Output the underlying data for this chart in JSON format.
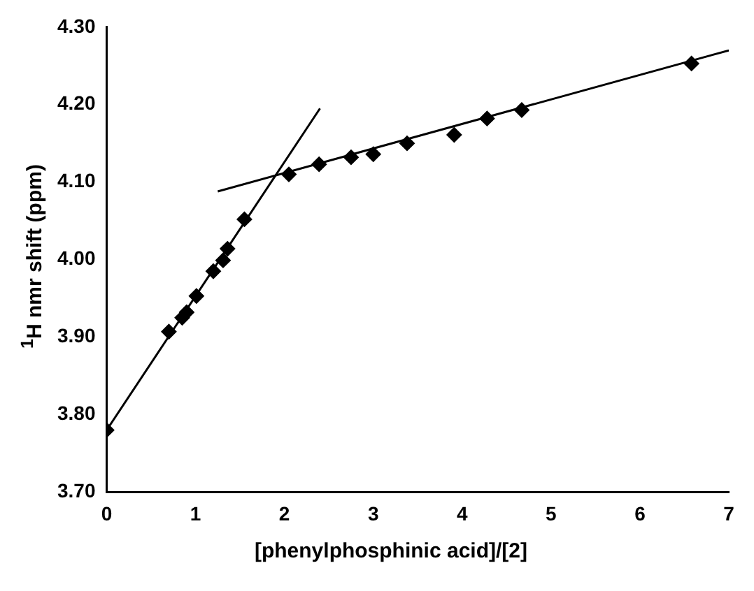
{
  "chart_data": {
    "type": "scatter",
    "xlabel": "[phenylphosphinic acid]/[2]",
    "ylabel": "$^{1}$H nmr shift (ppm)",
    "marker": "diamond",
    "xlim": [
      0,
      7
    ],
    "xticks": [
      0,
      1,
      2,
      3,
      4,
      5,
      6,
      7
    ],
    "ylim": [
      3.7,
      4.3
    ],
    "yticks": [
      {
        "value": 3.7,
        "label": "3.70"
      },
      {
        "value": 3.8,
        "label": "3.80"
      },
      {
        "value": 3.9,
        "label": "3.90"
      },
      {
        "value": 4.0,
        "label": "4.00"
      },
      {
        "value": 4.1,
        "label": "4.10"
      },
      {
        "value": 4.2,
        "label": "4.20"
      },
      {
        "value": 4.3,
        "label": "4.30"
      }
    ],
    "grid": false,
    "series": [
      {
        "color": "#000000",
        "x": [
          0,
          0.7,
          0.85,
          0.9,
          1.01,
          1.2,
          1.31,
          1.36,
          1.55,
          2.05,
          2.39,
          2.75,
          3.0,
          3.38,
          3.91,
          4.28,
          4.67,
          6.58
        ],
        "values": [
          3.78,
          3.907,
          3.925,
          3.932,
          3.953,
          3.985,
          3.999,
          4.014,
          4.052,
          4.11,
          4.123,
          4.132,
          4.136,
          4.15,
          4.161,
          4.182,
          4.193,
          4.253
        ]
      },
      {
        "type": "line",
        "color": "#000000",
        "marker": "none",
        "x": [
          0,
          2.4
        ],
        "values": [
          3.78,
          4.195
        ]
      },
      {
        "type": "line",
        "color": "#000000",
        "marker": "none",
        "x": [
          1.25,
          7
        ],
        "values": [
          4.088,
          4.27
        ]
      }
    ]
  }
}
